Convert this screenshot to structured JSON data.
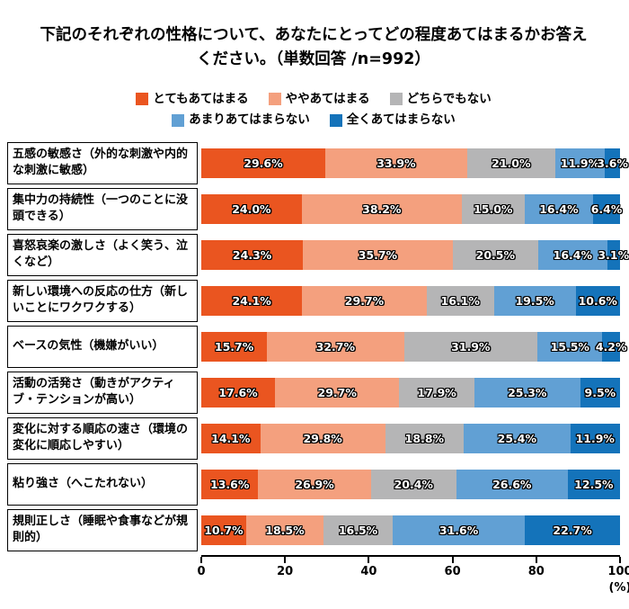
{
  "chart_data": {
    "type": "bar",
    "stacked": true,
    "orientation": "horizontal",
    "title": "下記のそれぞれの性格について、あなたにとってどの程度あてはまるかお答えください。（単数回答 /n=992）",
    "legend_position": "top",
    "categories": [
      "五感の敏感さ（外的な刺激や内的な刺激に敏感）",
      "集中力の持続性（一つのことに没頭できる）",
      "喜怒哀楽の激しさ（よく笑う、泣くなど）",
      "新しい環境への反応の仕方（新しいことにワクワクする）",
      "ベースの気性（機嫌がいい）",
      "活動の活発さ（動きがアクティブ・テンションが高い）",
      "変化に対する順応の速さ（環境の変化に順応しやすい）",
      "粘り強さ（へこたれない）",
      "規則正しさ（睡眠や食事などが規則的）"
    ],
    "series": [
      {
        "name": "とてもあてはまる",
        "color": "#EA5520",
        "values": [
          29.6,
          24.0,
          24.3,
          24.1,
          15.7,
          17.6,
          14.1,
          13.6,
          10.7
        ]
      },
      {
        "name": "ややあてはまる",
        "color": "#F4A07E",
        "values": [
          33.9,
          38.2,
          35.7,
          29.7,
          32.7,
          29.7,
          29.8,
          26.9,
          18.5
        ]
      },
      {
        "name": "どちらでもない",
        "color": "#B5B5B6",
        "values": [
          21.0,
          15.0,
          20.5,
          16.1,
          31.9,
          17.9,
          18.8,
          20.4,
          16.5
        ]
      },
      {
        "name": "あまりあてはまらない",
        "color": "#61A0D4",
        "values": [
          11.9,
          16.4,
          16.4,
          19.5,
          15.5,
          25.3,
          25.4,
          26.6,
          31.6
        ]
      },
      {
        "name": "全くあてはまらない",
        "color": "#1473BA",
        "values": [
          3.6,
          6.4,
          3.1,
          10.6,
          4.2,
          9.5,
          11.9,
          12.5,
          22.7
        ]
      }
    ],
    "xlim": [
      0,
      100
    ],
    "x_ticks": [
      0,
      20,
      40,
      60,
      80,
      100
    ],
    "x_axis_unit": "(%)",
    "value_suffix": "%",
    "value_decimals": 1
  }
}
